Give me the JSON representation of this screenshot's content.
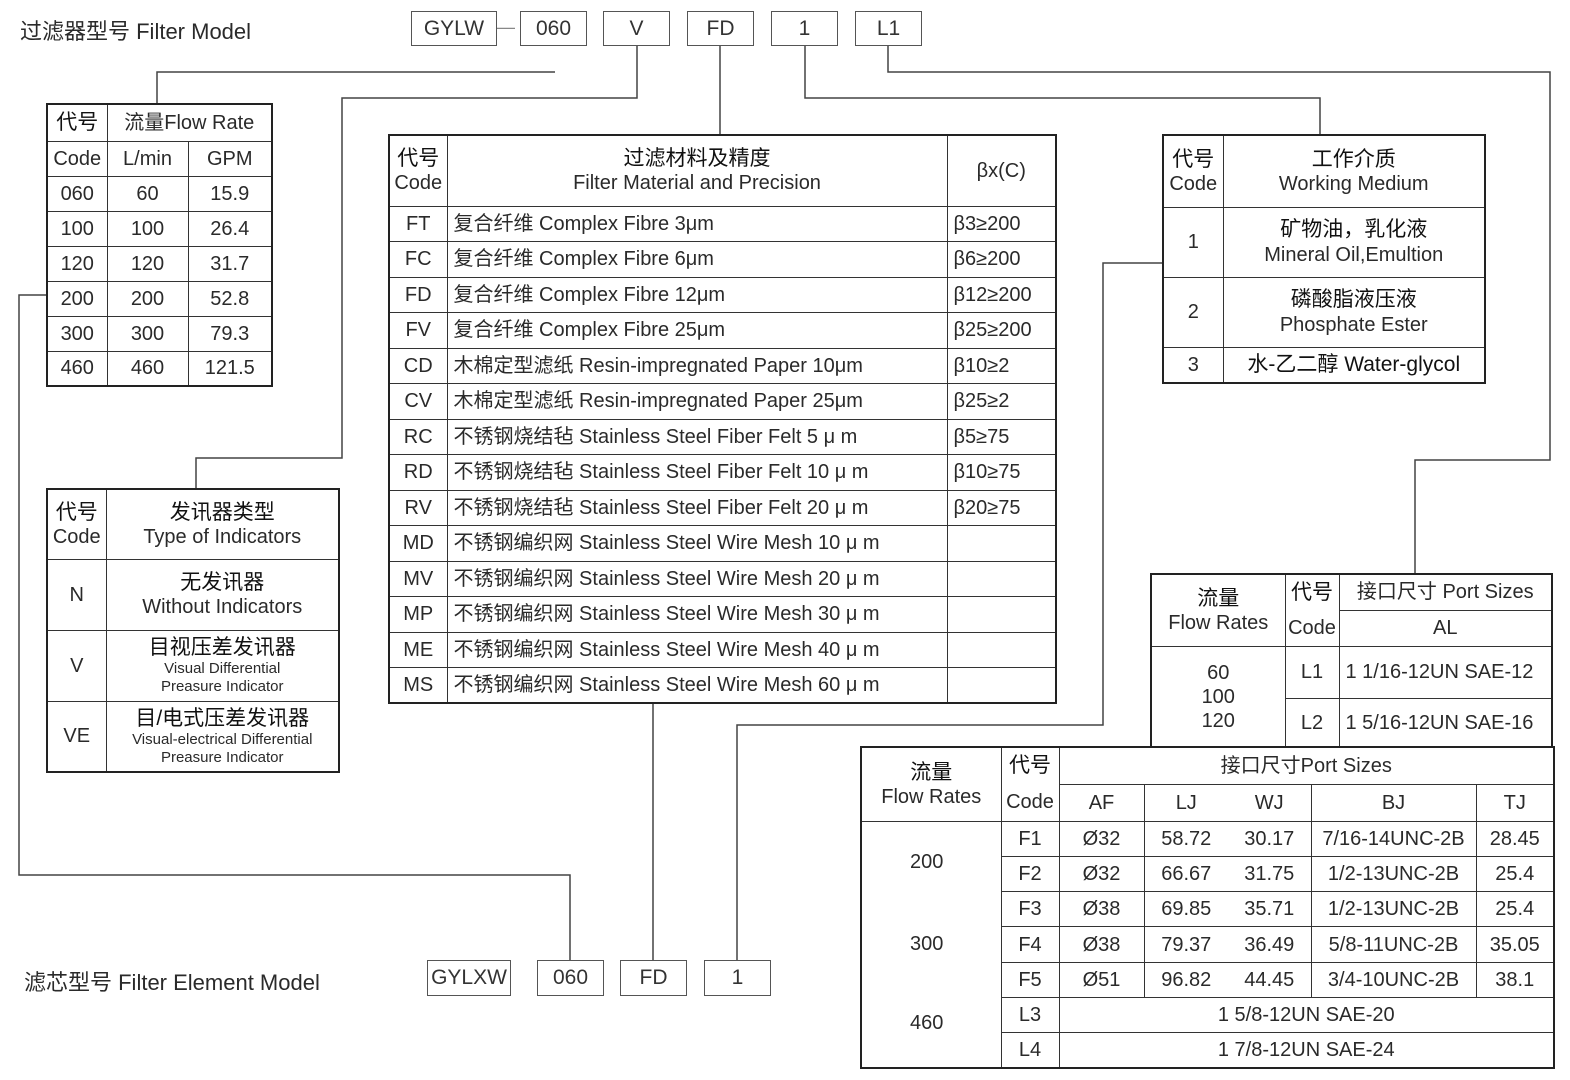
{
  "filter_model": {
    "title": "过滤器型号 Filter Model",
    "codes": [
      "GYLW",
      "060",
      "V",
      "FD",
      "1",
      "L1"
    ],
    "separator": "—"
  },
  "element_model": {
    "title": "滤芯型号 Filter Element Model",
    "codes": [
      "GYLXW",
      "060",
      "FD",
      "1"
    ]
  },
  "flow_table": {
    "code_cn": "代号",
    "code_en": "Code",
    "flow_label": "流量Flow Rate",
    "unit1": "L/min",
    "unit2": "GPM",
    "rows": [
      [
        "060",
        "60",
        "15.9"
      ],
      [
        "100",
        "100",
        "26.4"
      ],
      [
        "120",
        "120",
        "31.7"
      ],
      [
        "200",
        "200",
        "52.8"
      ],
      [
        "300",
        "300",
        "79.3"
      ],
      [
        "460",
        "460",
        "121.5"
      ]
    ]
  },
  "indicator_table": {
    "code_cn": "代号",
    "code_en": "Code",
    "type_cn": "发讯器类型",
    "type_en": "Type of Indicators",
    "rows": [
      {
        "code": "N",
        "cn": "无发讯器",
        "en1": "Without Indicators",
        "en2": ""
      },
      {
        "code": "V",
        "cn": "目视压差发讯器",
        "en1": "Visual Differential",
        "en2": "Preasure Indicator"
      },
      {
        "code": "VE",
        "cn": "目/电式压差发讯器",
        "en1": "Visual-electrical Differential",
        "en2": "Preasure Indicator"
      }
    ]
  },
  "material_table": {
    "code_cn": "代号",
    "code_en": "Code",
    "material_cn": "过滤材料及精度",
    "material_en": "Filter Material and Precision",
    "beta_header": "βx(C)",
    "rows": [
      [
        "FT",
        "复合纤维 Complex Fibre 3μm",
        "β3≥200"
      ],
      [
        "FC",
        "复合纤维 Complex Fibre 6μm",
        "β6≥200"
      ],
      [
        "FD",
        "复合纤维 Complex Fibre 12μm",
        "β12≥200"
      ],
      [
        "FV",
        "复合纤维 Complex Fibre 25μm",
        "β25≥200"
      ],
      [
        "CD",
        "木棉定型滤纸 Resin-impregnated Paper 10μm",
        "β10≥2"
      ],
      [
        "CV",
        "木棉定型滤纸 Resin-impregnated Paper 25μm",
        "β25≥2"
      ],
      [
        "RC",
        "不锈钢烧结毡 Stainless Steel Fiber Felt 5 μ m",
        "β5≥75"
      ],
      [
        "RD",
        "不锈钢烧结毡 Stainless Steel Fiber Felt 10 μ m",
        "β10≥75"
      ],
      [
        "RV",
        "不锈钢烧结毡 Stainless Steel Fiber Felt 20 μ m",
        "β20≥75"
      ],
      [
        "MD",
        "不锈钢编织网 Stainless Steel Wire Mesh 10 μ m",
        ""
      ],
      [
        "MV",
        "不锈钢编织网 Stainless Steel Wire Mesh 20 μ m",
        ""
      ],
      [
        "MP",
        "不锈钢编织网 Stainless Steel Wire Mesh 30 μ m",
        ""
      ],
      [
        "ME",
        "不锈钢编织网 Stainless Steel Wire Mesh 40 μ m",
        ""
      ],
      [
        "MS",
        "不锈钢编织网 Stainless Steel Wire Mesh 60 μ m",
        ""
      ]
    ]
  },
  "medium_table": {
    "code_cn": "代号",
    "code_en": "Code",
    "medium_cn": "工作介质",
    "medium_en": "Working Medium",
    "rows": [
      {
        "code": "1",
        "cn": "矿物油，乳化液",
        "en": "Mineral Oil,Emultion"
      },
      {
        "code": "2",
        "cn": "磷酸脂液压液",
        "en": "Phosphate Ester"
      },
      {
        "code": "3",
        "cn": "水-乙二醇  Water-glycol",
        "en": ""
      }
    ]
  },
  "port_table_1": {
    "flow_cn": "流量",
    "flow_en": "Flow  Rates",
    "code_cn": "代号",
    "code_en": "Code",
    "port_label": "接口尺寸 Port Sizes",
    "sub_header": "AL",
    "flows": [
      "60",
      "100",
      "120"
    ],
    "rows": [
      [
        "L1",
        "1 1/16-12UN SAE-12"
      ],
      [
        "L2",
        "1 5/16-12UN SAE-16"
      ]
    ]
  },
  "port_table_2": {
    "flow_cn": "流量",
    "flow_en": "Flow  Rates",
    "code_cn": "代号",
    "code_en": "Code",
    "port_label": "接口尺寸Port Sizes",
    "columns": [
      "AF",
      "LJ",
      "WJ",
      "BJ",
      "TJ"
    ],
    "flows": [
      "200",
      "300",
      "460"
    ],
    "rows": [
      [
        "F1",
        "Ø32",
        "58.72",
        "30.17",
        "7/16-14UNC-2B",
        "28.45"
      ],
      [
        "F2",
        "Ø32",
        "66.67",
        "31.75",
        "1/2-13UNC-2B",
        "25.4"
      ],
      [
        "F3",
        "Ø38",
        "69.85",
        "35.71",
        "1/2-13UNC-2B",
        "25.4"
      ],
      [
        "F4",
        "Ø38",
        "79.37",
        "36.49",
        "5/8-11UNC-2B",
        "35.05"
      ],
      [
        "F5",
        "Ø51",
        "96.82",
        "44.45",
        "3/4-10UNC-2B",
        "38.1"
      ]
    ],
    "span_rows": [
      [
        "L3",
        "1 5/8-12UN SAE-20"
      ],
      [
        "L4",
        "1 7/8-12UN SAE-24"
      ]
    ]
  }
}
